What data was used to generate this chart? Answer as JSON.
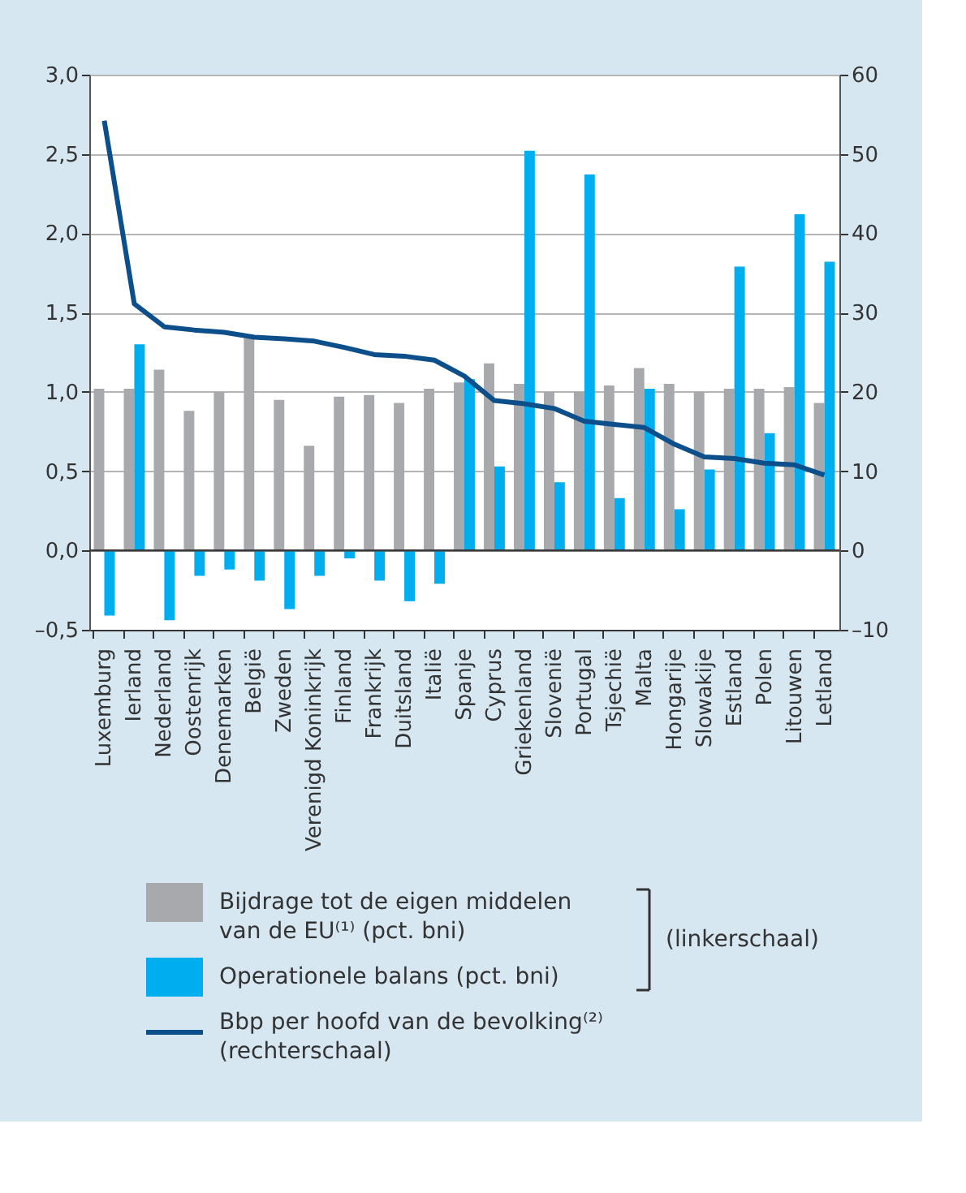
{
  "chart_data": {
    "type": "bar",
    "categories": [
      "Luxemburg",
      "Ierland",
      "Nederland",
      "Oostenrijk",
      "Denemarken",
      "België",
      "Zweden",
      "Verenigd Koninkrijk",
      "Finland",
      "Frankrijk",
      "Duitsland",
      "Italië",
      "Spanje",
      "Cyprus",
      "Griekenland",
      "Slovenië",
      "Portugal",
      "Tsjechië",
      "Malta",
      "Hongarije",
      "Slowakije",
      "Estland",
      "Polen",
      "Litouwen",
      "Letland"
    ],
    "series": [
      {
        "name": "Bijdrage tot de eigen middelen van de EU⁽¹⁾ (pct. bni)",
        "color": "#a7a9ac",
        "values": [
          1.02,
          1.02,
          1.14,
          0.88,
          1.0,
          1.34,
          0.95,
          0.66,
          0.97,
          0.98,
          0.93,
          1.02,
          1.06,
          1.18,
          1.05,
          1.0,
          1.0,
          1.04,
          1.15,
          1.05,
          1.0,
          1.02,
          1.02,
          1.03,
          0.93
        ]
      },
      {
        "name": "Operationele balans (pct. bni)",
        "color": "#00aeef",
        "values": [
          -0.41,
          1.3,
          -0.44,
          -0.16,
          -0.12,
          -0.19,
          -0.37,
          -0.16,
          -0.05,
          -0.19,
          -0.32,
          -0.21,
          1.08,
          0.53,
          2.52,
          0.43,
          2.37,
          0.33,
          1.02,
          0.26,
          0.51,
          1.79,
          0.74,
          2.12,
          1.82
        ]
      },
      {
        "name": "Bbp per hoofd van de bevolking⁽²⁾ (rechterschaal)",
        "type": "line",
        "axis": "y2",
        "color": "#0d4f8b",
        "values": [
          54.2,
          31.1,
          28.2,
          27.8,
          27.5,
          26.9,
          26.7,
          26.4,
          25.6,
          24.7,
          24.5,
          24.0,
          22.0,
          18.9,
          18.5,
          17.9,
          16.3,
          15.9,
          15.5,
          13.4,
          11.8,
          11.6,
          11.0,
          10.8,
          9.5
        ]
      }
    ],
    "ylim": [
      -0.5,
      3.0
    ],
    "yticks": [
      {
        "value": -0.5,
        "label": "–0,5"
      },
      {
        "value": 0,
        "label": "0,0"
      },
      {
        "value": 0.5,
        "label": "0,5"
      },
      {
        "value": 1.0,
        "label": "1,0"
      },
      {
        "value": 1.5,
        "label": "1,5"
      },
      {
        "value": 2.0,
        "label": "2,0"
      },
      {
        "value": 2.5,
        "label": "2,5"
      },
      {
        "value": 3.0,
        "label": "3,0"
      }
    ],
    "y2lim": [
      -10,
      60
    ],
    "y2ticks": [
      {
        "value": -10,
        "label": "–10"
      },
      0,
      10,
      20,
      30,
      40,
      50,
      60
    ],
    "ref_lines": [
      {
        "axis": "y",
        "value": 0,
        "color": "#3a3a3a"
      }
    ],
    "annotations": [
      "(linkerschaal)"
    ],
    "grid": "y",
    "legend": "bottom"
  }
}
